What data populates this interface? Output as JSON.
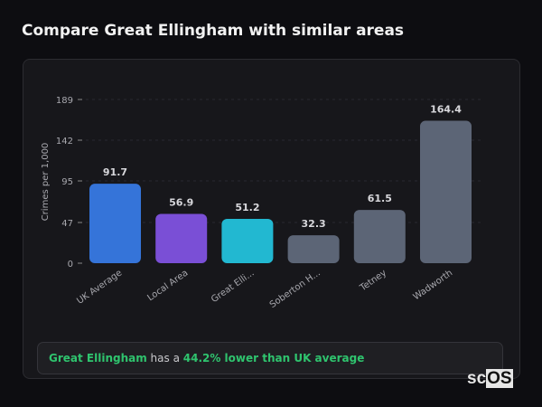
{
  "title": "Compare Great Ellingham with similar areas",
  "chart_data": {
    "type": "bar",
    "ylabel": "Crimes per 1,000",
    "yticks": [
      0,
      47,
      95,
      142,
      189
    ],
    "ylim": [
      0,
      189
    ],
    "grid": true,
    "categories": [
      "UK Average",
      "Local Area",
      "Great Elli...",
      "Soberton H...",
      "Tetney",
      "Wadworth"
    ],
    "values": [
      91.7,
      56.9,
      51.2,
      32.3,
      61.5,
      164.4
    ],
    "labels": [
      "91.7",
      "56.9",
      "51.2",
      "32.3",
      "61.5",
      "164.4"
    ],
    "colors": [
      "#3574d9",
      "#7a4fd6",
      "#22b8d1",
      "#5c6576",
      "#5c6576",
      "#5c6576"
    ]
  },
  "summary": {
    "area": "Great Ellingham",
    "middle": " has a ",
    "highlight": "44.2% lower than UK average"
  },
  "logo": {
    "left": "sc",
    "right": "OS"
  }
}
